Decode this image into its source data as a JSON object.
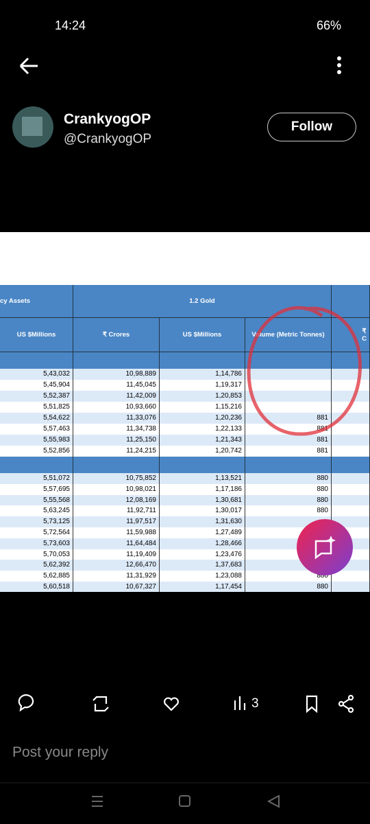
{
  "status_bar": {
    "time": "14:24",
    "battery": "66%"
  },
  "post": {
    "author_name": "CrankyogOP",
    "author_handle": "@CrankyogOP",
    "follow_button": "Follow",
    "image_table": {
      "header_top": [
        "cy Assets",
        "1.2 Gold"
      ],
      "header_sub": [
        "US $Millions",
        "₹ Crores",
        "US $Millions",
        "Volume (Metric Tonnes)",
        "₹ C"
      ],
      "groups": [
        {
          "rows": [
            {
              "assets": "5,43,032",
              "crores": "10,98,889",
              "usd": "1,14,786"
            },
            {
              "assets": "5,45,904",
              "crores": "11,45,045",
              "usd": "1,19,317"
            },
            {
              "assets": "5,52,387",
              "crores": "11,42,009",
              "usd": "1,20,853"
            },
            {
              "assets": "5,51,825",
              "crores": "10,93,660",
              "usd": "1,15,216"
            },
            {
              "assets": "5,54,622",
              "crores": "11,33,076",
              "usd": "1,20,236",
              "volume": "881"
            },
            {
              "assets": "5,57,463",
              "crores": "11,34,738",
              "usd": "1,22,133",
              "volume": "881"
            },
            {
              "assets": "5,55,983",
              "crores": "11,25,150",
              "usd": "1,21,343",
              "volume": "881"
            },
            {
              "assets": "5,52,856",
              "crores": "11,24,215",
              "usd": "1,20,742",
              "volume": "881"
            }
          ]
        },
        {
          "rows": [
            {
              "assets": "5,51,072",
              "crores": "10,75,852",
              "usd": "1,13,521",
              "volume": "880"
            },
            {
              "assets": "5,57,695",
              "crores": "10,98,021",
              "usd": "1,17,186",
              "volume": "880"
            },
            {
              "assets": "5,55,568",
              "crores": "12,08,169",
              "usd": "1,30,681",
              "volume": "880"
            },
            {
              "assets": "5,63,245",
              "crores": "11,92,711",
              "usd": "1,30,017",
              "volume": "880"
            },
            {
              "assets": "5,73,125",
              "crores": "11,97,517",
              "usd": "1,31,630"
            },
            {
              "assets": "5,72,564",
              "crores": "11,59,988",
              "usd": "1,27,489"
            },
            {
              "assets": "5,73,603",
              "crores": "11,64,484",
              "usd": "1,28,466"
            },
            {
              "assets": "5,70,053",
              "crores": "11,19,409",
              "usd": "1,23,476"
            },
            {
              "assets": "5,62,392",
              "crores": "12,66,470",
              "usd": "1,37,683"
            },
            {
              "assets": "5,62,885",
              "crores": "11,31,929",
              "usd": "1,23,088",
              "volume": "880"
            },
            {
              "assets": "5,60,518",
              "crores": "10,67,327",
              "usd": "1,17,454",
              "volume": "880"
            }
          ]
        }
      ]
    },
    "views": "3",
    "reply_placeholder": "Post your reply"
  }
}
